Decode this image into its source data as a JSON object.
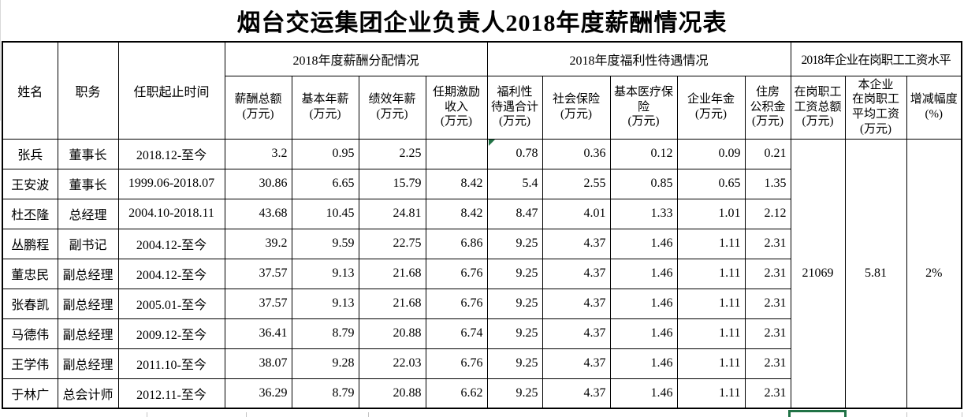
{
  "title": "烟台交运集团企业负责人2018年度薪酬情况表",
  "table": {
    "header": {
      "name": "姓名",
      "position": "职务",
      "tenure": "任职起止时间",
      "salary_group": "2018年度薪酬分配情况",
      "welfare_group": "2018年度福利性待遇情况",
      "wage_group": "2018年企业在岗职工工资水平"
    },
    "sub_headers": [
      "薪酬总额\n(万元)",
      "基本年薪\n(万元)",
      "绩效年薪\n(万元)",
      "任期激励\n收入\n(万元)",
      "福利性\n待遇合计\n(万元)",
      "社会保险\n(万元)",
      "基本医疗保\n险\n(万元)",
      "企业年金\n(万元)",
      "住房\n公积金\n(万元)",
      "在岗职工\n工资总额\n(万元)",
      "本企业\n在岗职工\n平均工资\n(万元)",
      "增减幅度\n(%)"
    ],
    "rows": [
      {
        "name": "张兵",
        "title": "董事长",
        "tenure": "2018.12-至今",
        "values": [
          "3.2",
          "0.95",
          "2.25",
          "",
          "0.78",
          "0.36",
          "0.12",
          "0.09",
          "0.21"
        ]
      },
      {
        "name": "王安波",
        "title": "董事长",
        "tenure": "1999.06-2018.07",
        "values": [
          "30.86",
          "6.65",
          "15.79",
          "8.42",
          "5.4",
          "2.55",
          "0.85",
          "0.65",
          "1.35"
        ]
      },
      {
        "name": "杜丕隆",
        "title": "总经理",
        "tenure": "2004.10-2018.11",
        "values": [
          "43.68",
          "10.45",
          "24.81",
          "8.42",
          "8.47",
          "4.01",
          "1.33",
          "1.01",
          "2.12"
        ]
      },
      {
        "name": "丛鹏程",
        "title": "副书记",
        "tenure": "2004.12-至今",
        "values": [
          "39.2",
          "9.59",
          "22.75",
          "6.86",
          "9.25",
          "4.37",
          "1.46",
          "1.11",
          "2.31"
        ]
      },
      {
        "name": "董忠民",
        "title": "副总经理",
        "tenure": "2004.12-至今",
        "values": [
          "37.57",
          "9.13",
          "21.68",
          "6.76",
          "9.25",
          "4.37",
          "1.46",
          "1.11",
          "2.31"
        ]
      },
      {
        "name": "张春凯",
        "title": "副总经理",
        "tenure": "2005.01-至今",
        "values": [
          "37.57",
          "9.13",
          "21.68",
          "6.76",
          "9.25",
          "4.37",
          "1.46",
          "1.11",
          "2.31"
        ]
      },
      {
        "name": "马德伟",
        "title": "副总经理",
        "tenure": "2009.12-至今",
        "values": [
          "36.41",
          "8.79",
          "20.88",
          "6.74",
          "9.25",
          "4.37",
          "1.46",
          "1.11",
          "2.31"
        ]
      },
      {
        "name": "王学伟",
        "title": "副总经理",
        "tenure": "2011.10-至今",
        "values": [
          "38.07",
          "9.28",
          "22.03",
          "6.76",
          "9.25",
          "4.37",
          "1.46",
          "1.11",
          "2.31"
        ]
      },
      {
        "name": "于林广",
        "title": "总会计师",
        "tenure": "2012.11-至今",
        "values": [
          "36.29",
          "8.79",
          "20.88",
          "6.62",
          "9.25",
          "4.37",
          "1.46",
          "1.11",
          "2.31"
        ]
      }
    ],
    "merged": {
      "total_wage": "21069",
      "avg_wage": "5.81",
      "change": "2%"
    }
  },
  "colors": {
    "selection_green": "#217346",
    "indicator_green": "#217346",
    "border_black": "#000000"
  }
}
